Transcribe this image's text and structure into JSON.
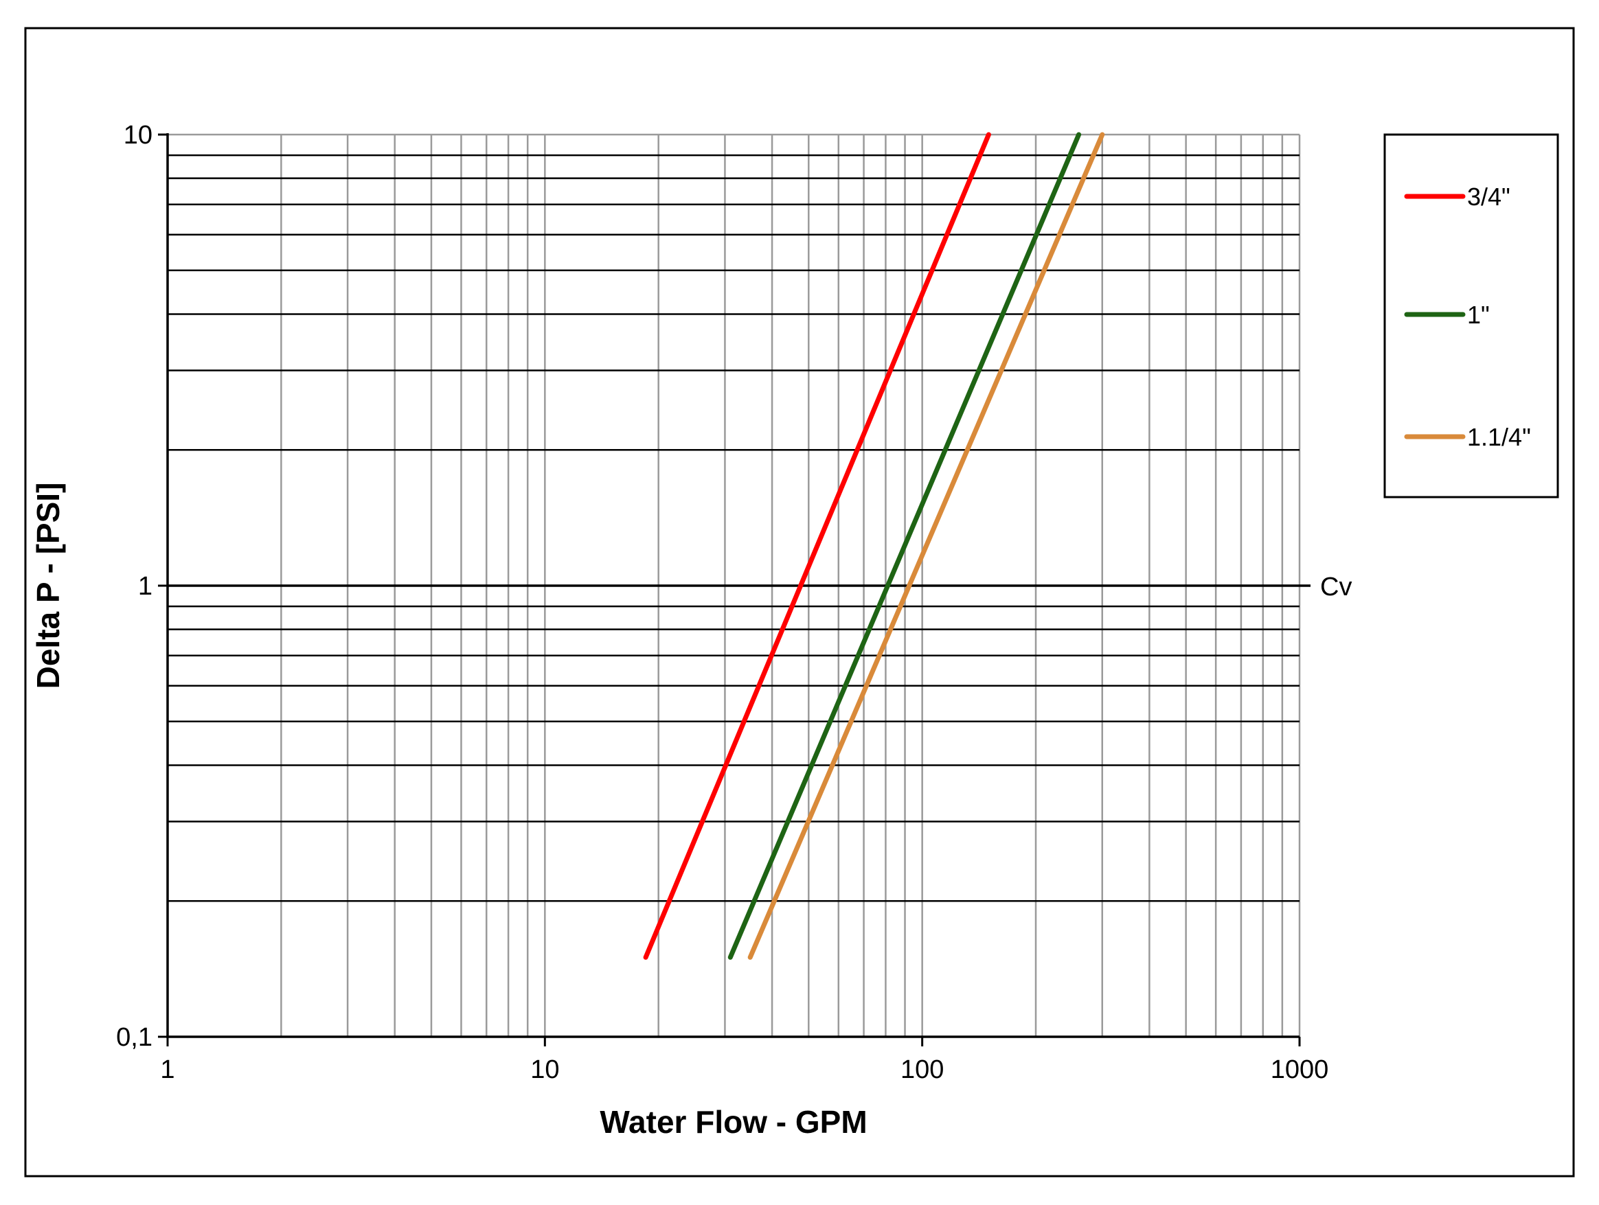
{
  "chart_data": {
    "type": "line",
    "title": "",
    "xlabel": "Water Flow  - GPM",
    "ylabel": "Delta P - [PSI]",
    "xscale": "log",
    "yscale": "log",
    "xlim": [
      1,
      1000
    ],
    "ylim": [
      0.1,
      10
    ],
    "x_tick_labels": [
      {
        "value": 1,
        "label": "1"
      },
      {
        "value": 10,
        "label": "10"
      },
      {
        "value": 100,
        "label": "100"
      },
      {
        "value": 1000,
        "label": "1000"
      }
    ],
    "y_tick_labels": [
      {
        "value": 0.1,
        "label": "0,1"
      },
      {
        "value": 1,
        "label": "1"
      },
      {
        "value": 10,
        "label": "10"
      }
    ],
    "grid": true,
    "legend": "right",
    "annotations": [
      {
        "text": "Cv",
        "y": 1
      }
    ],
    "series": [
      {
        "name": "3/4\"",
        "color": "#ff0000",
        "x": [
          18.5,
          150
        ],
        "y": [
          0.15,
          10
        ]
      },
      {
        "name": "1\"",
        "color": "#1e6414",
        "x": [
          31,
          260
        ],
        "y": [
          0.15,
          10
        ]
      },
      {
        "name": "1.1/4\"",
        "color": "#d98a3a",
        "x": [
          35,
          300
        ],
        "y": [
          0.15,
          10
        ]
      }
    ]
  }
}
